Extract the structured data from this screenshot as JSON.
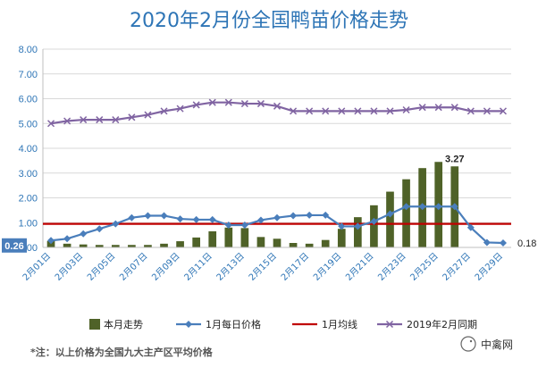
{
  "chart_data": {
    "type": "bar+line",
    "title": "2020年2月份全国鸭苗价格走势",
    "ylim": [
      0,
      8
    ],
    "yticks": [
      "0.00",
      "1.00",
      "2.00",
      "3.00",
      "4.00",
      "5.00",
      "6.00",
      "7.00",
      "8.00"
    ],
    "grid": true,
    "legend_position": "bottom",
    "x_tick_labels": [
      "2月01日",
      "2月03日",
      "2月05日",
      "2月07日",
      "2月09日",
      "2月11日",
      "2月13日",
      "2月15日",
      "2月17日",
      "2月19日",
      "2月21日",
      "2月23日",
      "2月25日",
      "2月27日",
      "2月29日"
    ],
    "x_days": [
      1,
      3,
      5,
      7,
      9,
      11,
      13,
      15,
      17,
      19,
      21,
      23,
      25,
      27,
      29
    ],
    "series": [
      {
        "name": "本月走势",
        "kind": "bar",
        "color": "#4f6228",
        "x": [
          1,
          2,
          3,
          4,
          5,
          6,
          7,
          8,
          9,
          10,
          11,
          12,
          13,
          14,
          15,
          16,
          17,
          18,
          19,
          20,
          21,
          22,
          23,
          24,
          25,
          26
        ],
        "values": [
          0.26,
          0.15,
          0.12,
          0.1,
          0.1,
          0.1,
          0.1,
          0.15,
          0.25,
          0.4,
          0.65,
          0.8,
          0.78,
          0.42,
          0.35,
          0.18,
          0.15,
          0.3,
          0.75,
          1.22,
          1.7,
          2.25,
          2.75,
          3.2,
          3.45,
          3.27
        ]
      },
      {
        "name": "1月每日价格",
        "kind": "line",
        "color": "#4a7ebb",
        "marker": "diamond",
        "x": [
          1,
          2,
          3,
          4,
          5,
          6,
          7,
          8,
          9,
          10,
          11,
          12,
          13,
          14,
          15,
          16,
          17,
          18,
          19,
          20,
          21,
          22,
          23,
          24,
          25,
          26,
          27,
          28,
          29
        ],
        "values": [
          0.28,
          0.35,
          0.55,
          0.75,
          0.95,
          1.2,
          1.28,
          1.28,
          1.15,
          1.12,
          1.12,
          0.9,
          0.9,
          1.1,
          1.2,
          1.28,
          1.3,
          1.3,
          0.85,
          0.85,
          1.05,
          1.35,
          1.65,
          1.65,
          1.65,
          1.65,
          0.8,
          0.2,
          0.18
        ]
      },
      {
        "name": "1月均线",
        "kind": "hline",
        "color": "#c00000",
        "value": 0.95
      },
      {
        "name": "2019年2月同期",
        "kind": "line",
        "color": "#8064a2",
        "marker": "x",
        "x": [
          1,
          2,
          3,
          4,
          5,
          6,
          7,
          8,
          9,
          10,
          11,
          12,
          13,
          14,
          15,
          16,
          17,
          18,
          19,
          20,
          21,
          22,
          23,
          24,
          25,
          26,
          27,
          28,
          29
        ],
        "values": [
          5.0,
          5.1,
          5.15,
          5.15,
          5.15,
          5.25,
          5.35,
          5.5,
          5.6,
          5.75,
          5.85,
          5.85,
          5.8,
          5.8,
          5.7,
          5.5,
          5.5,
          5.5,
          5.5,
          5.5,
          5.5,
          5.5,
          5.55,
          5.65,
          5.65,
          5.65,
          5.5,
          5.5,
          5.5
        ]
      }
    ],
    "annotations": [
      {
        "label": "3.27",
        "x": 26,
        "y": 3.27,
        "series": "本月走势"
      },
      {
        "label": "0.26",
        "x": 1,
        "y": 0.26,
        "series": "本月走势",
        "boxed": true
      },
      {
        "label": "0.18",
        "x": 29,
        "y": 0.18,
        "series": "1月每日价格"
      }
    ],
    "note": "*注：以上价格为全国九大主产区平均价格"
  },
  "watermark": {
    "brand": "中禽网",
    "logo": "chick-logo-icon"
  }
}
